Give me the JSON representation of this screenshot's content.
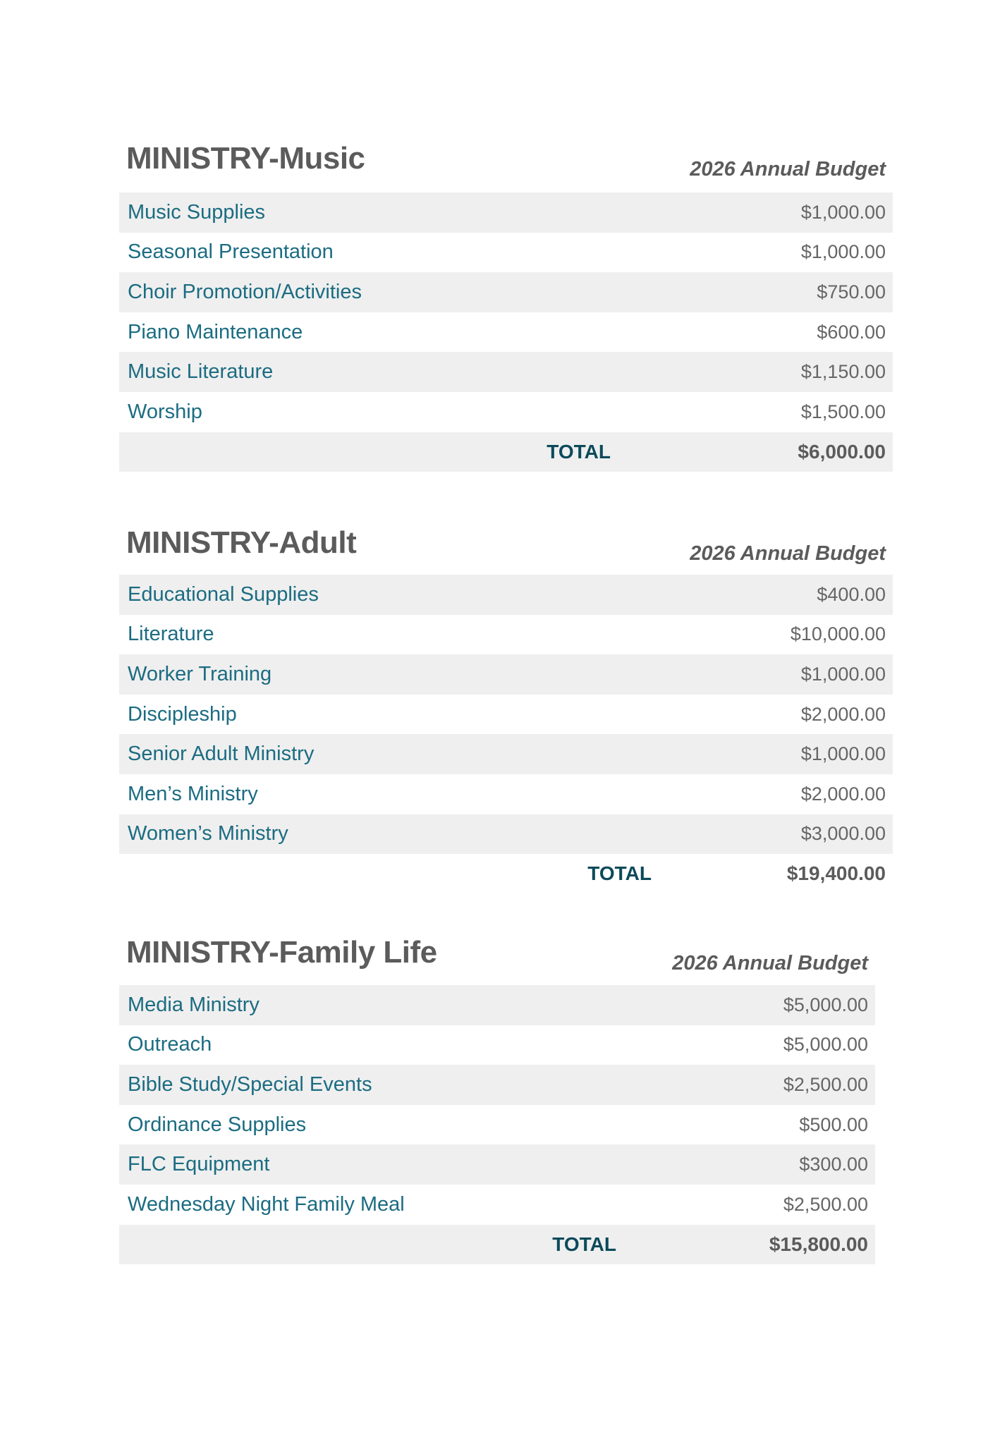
{
  "sections": [
    {
      "title": "MINISTRY-Music",
      "budget_label": "2026 Annual Budget",
      "items": [
        {
          "label": "Music Supplies",
          "amount": "$1,000.00"
        },
        {
          "label": "Seasonal Presentation",
          "amount": "$1,000.00"
        },
        {
          "label": "Choir Promotion/Activities",
          "amount": "$750.00"
        },
        {
          "label": "Piano Maintenance",
          "amount": "$600.00"
        },
        {
          "label": "Music Literature",
          "amount": "$1,150.00"
        },
        {
          "label": "Worship",
          "amount": "$1,500.00"
        }
      ],
      "total_label": "TOTAL",
      "total": "$6,000.00"
    },
    {
      "title": "MINISTRY-Adult",
      "budget_label": "2026 Annual Budget",
      "items": [
        {
          "label": "Educational Supplies",
          "amount": "$400.00"
        },
        {
          "label": "Literature",
          "amount": "$10,000.00"
        },
        {
          "label": "Worker Training",
          "amount": "$1,000.00"
        },
        {
          "label": "Discipleship",
          "amount": "$2,000.00"
        },
        {
          "label": "Senior Adult Ministry",
          "amount": "$1,000.00"
        },
        {
          "label": "Men’s Ministry",
          "amount": "$2,000.00"
        },
        {
          "label": "Women’s Ministry",
          "amount": "$3,000.00"
        }
      ],
      "total_label": "TOTAL",
      "total": "$19,400.00"
    },
    {
      "title": "MINISTRY-Family Life",
      "budget_label": "2026 Annual Budget",
      "items": [
        {
          "label": "Media Ministry",
          "amount": "$5,000.00"
        },
        {
          "label": "Outreach",
          "amount": "$5,000.00"
        },
        {
          "label": "Bible Study/Special Events",
          "amount": "$2,500.00"
        },
        {
          "label": "Ordinance Supplies",
          "amount": "$500.00"
        },
        {
          "label": "FLC Equipment",
          "amount": "$300.00"
        },
        {
          "label": "Wednesday Night Family Meal",
          "amount": "$2,500.00"
        }
      ],
      "total_label": "TOTAL",
      "total": "$15,800.00"
    }
  ]
}
